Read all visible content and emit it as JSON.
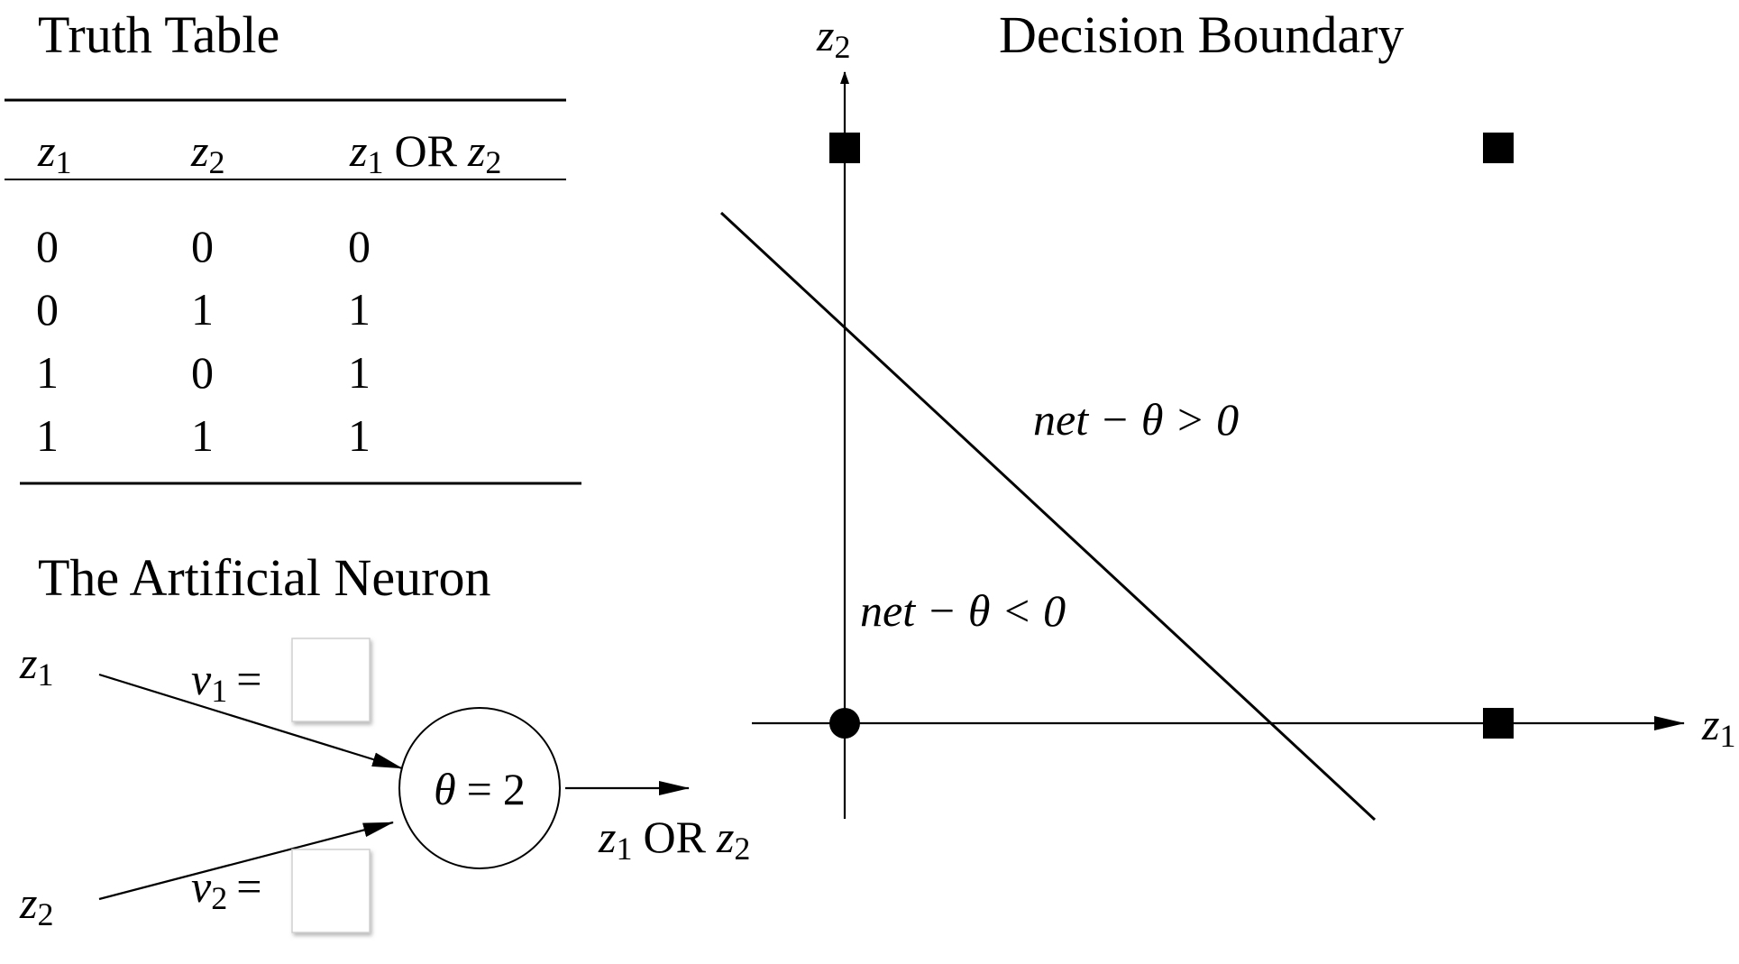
{
  "truth_table": {
    "title": "Truth Table",
    "headers": [
      {
        "var": "z",
        "sub": "1"
      },
      {
        "var": "z",
        "sub": "2"
      },
      {
        "var1": "z",
        "sub1": "1",
        "op": "OR",
        "var2": "z",
        "sub2": "2"
      }
    ],
    "rows": [
      [
        "0",
        "0",
        "0"
      ],
      [
        "0",
        "1",
        "1"
      ],
      [
        "1",
        "0",
        "1"
      ],
      [
        "1",
        "1",
        "1"
      ]
    ]
  },
  "neuron": {
    "title": "The Artificial Neuron",
    "input1": {
      "var": "z",
      "sub": "1"
    },
    "input2": {
      "var": "z",
      "sub": "2"
    },
    "weight1": {
      "var": "v",
      "sub": "1",
      "eq": "="
    },
    "weight2": {
      "var": "v",
      "sub": "2",
      "eq": "="
    },
    "node_label": {
      "theta": "θ",
      "eq": "=",
      "value": "2"
    },
    "output": {
      "var1": "z",
      "sub1": "1",
      "op": "OR",
      "var2": "z",
      "sub2": "2"
    }
  },
  "decision_boundary": {
    "title": "Decision Boundary",
    "x_axis_label": {
      "var": "z",
      "sub": "1"
    },
    "y_axis_label": {
      "var": "z",
      "sub": "2"
    },
    "region_above": "net − θ > 0",
    "region_below": "net − θ < 0",
    "points": [
      {
        "z1": 0,
        "z2": 0,
        "marker": "circle"
      },
      {
        "z1": 0,
        "z2": 1,
        "marker": "square"
      },
      {
        "z1": 1,
        "z2": 0,
        "marker": "square"
      },
      {
        "z1": 1,
        "z2": 1,
        "marker": "square"
      }
    ]
  }
}
